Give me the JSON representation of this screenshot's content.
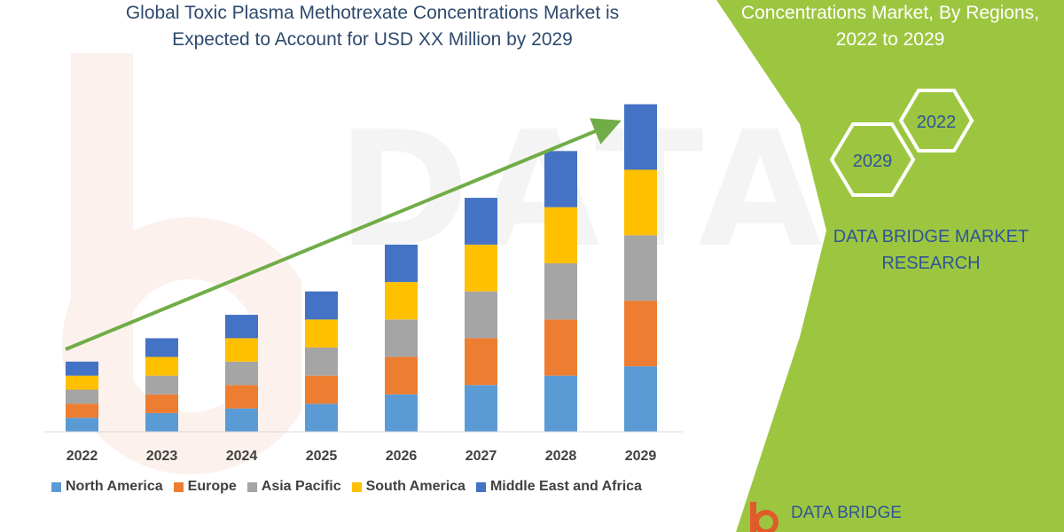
{
  "header": {
    "title_line1": "Global Toxic Plasma Methotrexate Concentrations Market is",
    "title_line2": "Expected to Account for USD XX Million by 2029"
  },
  "side_panel": {
    "title_line1": "Concentrations Market, By Regions,",
    "title_line2": "2022 to 2029",
    "hex_back": "2022",
    "hex_front": "2029",
    "brand_line1": "DATA BRIDGE MARKET",
    "brand_line2": "RESEARCH",
    "logo_text": "DATA BRIDGE",
    "panel_color": "#9dc640",
    "hex_color": "#ffffff"
  },
  "watermark": {
    "text": "DATA BRIDGE"
  },
  "colors": {
    "North America": "#5b9bd5",
    "Europe": "#ed7d31",
    "Asia Pacific": "#a5a5a5",
    "South America": "#ffc000",
    "Middle East and Africa": "#4472c4",
    "trend_arrow": "#70ad47"
  },
  "chart_data": {
    "type": "bar",
    "stacked": true,
    "categories": [
      "2022",
      "2023",
      "2024",
      "2025",
      "2026",
      "2027",
      "2028",
      "2029"
    ],
    "series": [
      {
        "name": "North America",
        "values": [
          1.5,
          2.0,
          2.5,
          3.0,
          4.0,
          5.0,
          6.0,
          7.0
        ]
      },
      {
        "name": "Europe",
        "values": [
          1.5,
          2.0,
          2.5,
          3.0,
          4.0,
          5.0,
          6.0,
          7.0
        ]
      },
      {
        "name": "Asia Pacific",
        "values": [
          1.5,
          2.0,
          2.5,
          3.0,
          4.0,
          5.0,
          6.0,
          7.0
        ]
      },
      {
        "name": "South America",
        "values": [
          1.5,
          2.0,
          2.5,
          3.0,
          4.0,
          5.0,
          6.0,
          7.0
        ]
      },
      {
        "name": "Middle East and Africa",
        "values": [
          1.5,
          2.0,
          2.5,
          3.0,
          4.0,
          5.0,
          6.0,
          7.0
        ]
      }
    ],
    "ylim": [
      0,
      36
    ],
    "trend_arrow": true,
    "legend_position": "bottom",
    "grid": false
  }
}
